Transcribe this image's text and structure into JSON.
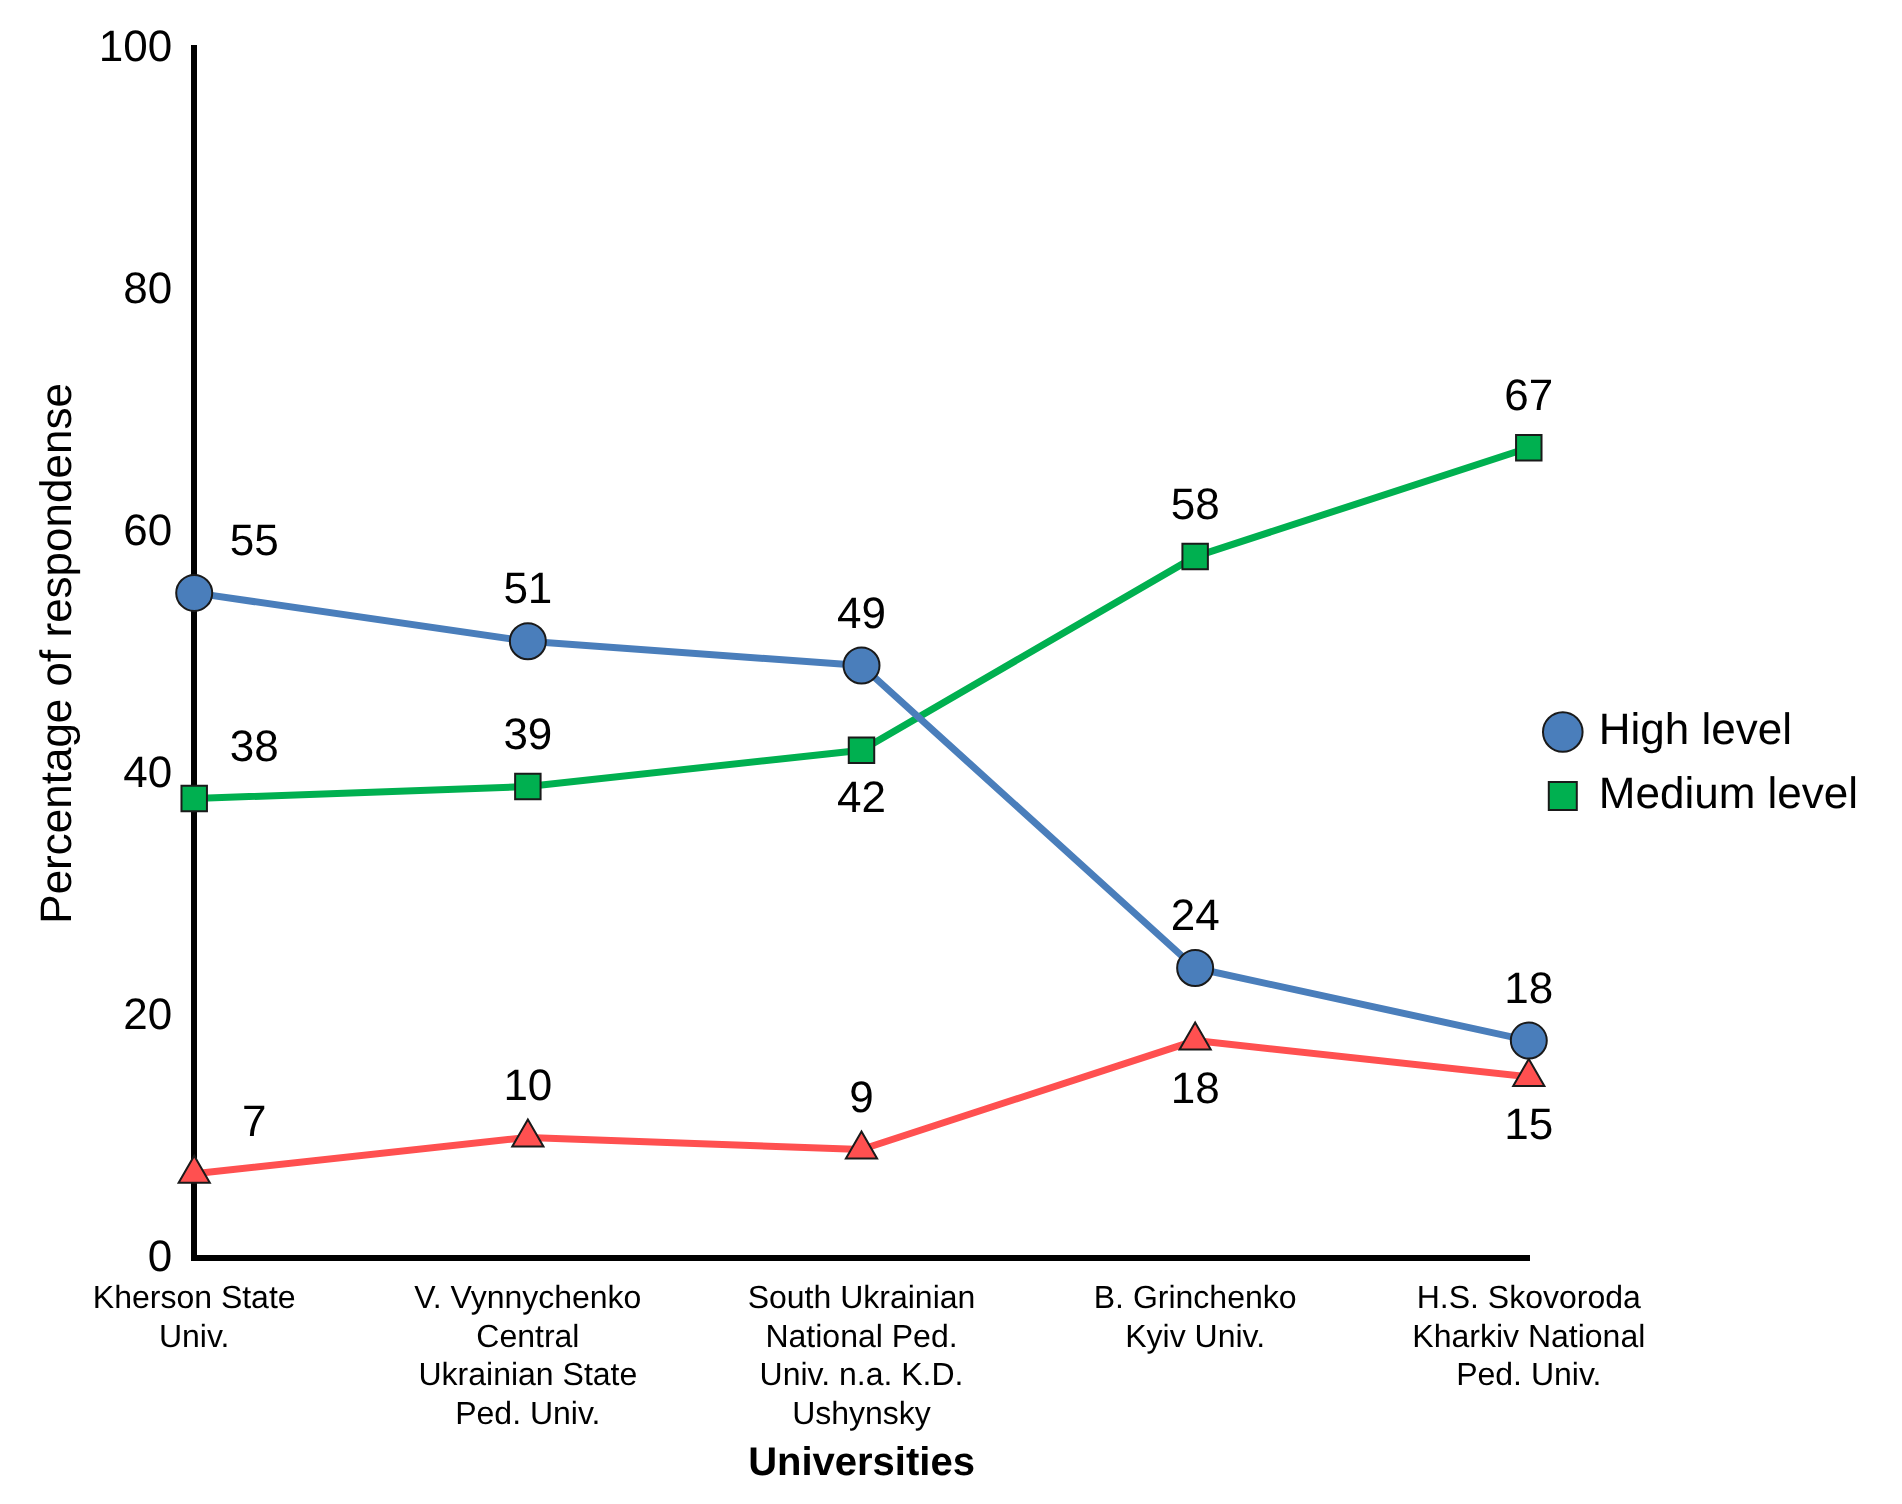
{
  "chart_data": {
    "type": "line",
    "xlabel": "Universities",
    "ylabel": "Percentage of respondense",
    "categories": [
      "Kherson State Univ.",
      "V. Vynnychenko Central Ukrainian State Ped. Univ.",
      "South Ukrainian National Ped. Univ. n.a. K.D. Ushynsky",
      "B. Grinchenko Kyiv Univ.",
      "H.S. Skovoroda Kharkiv National Ped. Univ."
    ],
    "series": [
      {
        "name": "High level",
        "color": "#4a7ebb",
        "marker": "circle",
        "values": [
          55,
          51,
          49,
          24,
          18
        ]
      },
      {
        "name": "Medium level",
        "color": "#00b050",
        "marker": "square",
        "values": [
          38,
          39,
          42,
          58,
          67
        ]
      },
      {
        "color": "#ff5050",
        "marker": "triangle",
        "values": [
          7,
          10,
          9,
          18,
          15
        ]
      }
    ],
    "ylim": [
      0,
      100
    ],
    "yticks": [
      0,
      20,
      40,
      60,
      80,
      100
    ],
    "grid": false,
    "legend": "right",
    "data_labels": true,
    "line_style": "solid"
  }
}
